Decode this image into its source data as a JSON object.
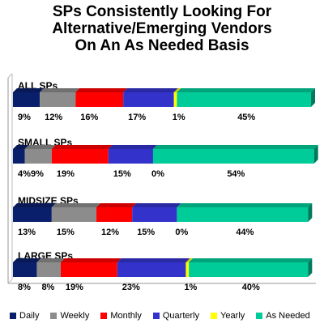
{
  "title_lines": [
    "SPs Consistently Looking For",
    "Alternative/Emerging Vendors",
    "On An As Needed Basis"
  ],
  "chart_data": {
    "type": "bar",
    "orientation": "horizontal",
    "stacked": true,
    "categories": [
      "ALL SPs",
      "SMALL SPs",
      "MIDSIZE SPs",
      "LARGE SPs"
    ],
    "series": [
      {
        "name": "Daily",
        "color": "#0a1f6b",
        "values": [
          9,
          4,
          13,
          8
        ],
        "labels": [
          "9%",
          "4%",
          "13%",
          "8%"
        ]
      },
      {
        "name": "Weekly",
        "color": "#8c8c8c",
        "values": [
          12,
          9,
          15,
          8
        ],
        "labels": [
          "12%",
          "9%",
          "15%",
          "8%"
        ]
      },
      {
        "name": "Monthly",
        "color": "#ff0000",
        "values": [
          16,
          19,
          12,
          19
        ],
        "labels": [
          "16%",
          "19%",
          "12%",
          "19%"
        ]
      },
      {
        "name": "Quarterly",
        "color": "#3333cc",
        "values": [
          17,
          15,
          15,
          23
        ],
        "labels": [
          "17%",
          "15%",
          "15%",
          "23%"
        ]
      },
      {
        "name": "Yearly",
        "color": "#ffff00",
        "values": [
          1,
          0,
          0,
          1
        ],
        "labels": [
          "1%",
          "0%",
          "0%",
          "1%"
        ]
      },
      {
        "name": "As Needed",
        "color": "#00cc99",
        "values": [
          45,
          54,
          44,
          40
        ],
        "labels": [
          "45%",
          "54%",
          "44%",
          "40%"
        ]
      }
    ],
    "xlim": [
      0,
      100
    ],
    "grid": false,
    "legend_position": "bottom"
  }
}
